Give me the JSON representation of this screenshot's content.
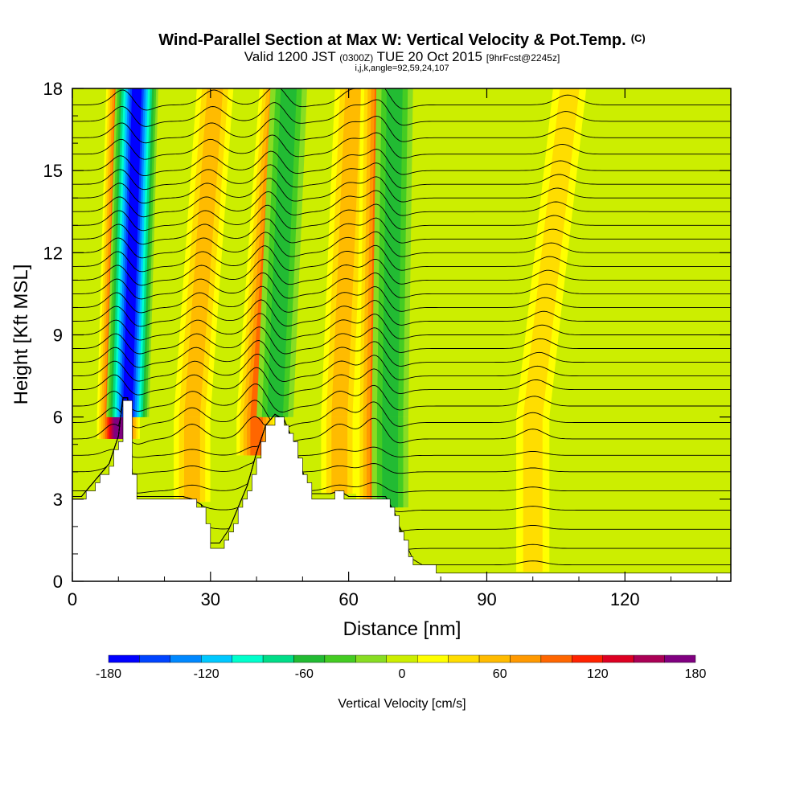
{
  "header": {
    "title": "Wind-Parallel Section at Max W: Vertical Velocity & Pot.Temp.",
    "title_mark": "(C)",
    "valid_prefix": "Valid 1200 JST",
    "valid_utc": "(0300Z)",
    "valid_date": "TUE 20 Oct 2015",
    "forecast": "[9hrFcst@2245z]",
    "indices": "i,j,k,angle=92,59,24,107"
  },
  "chart_data": {
    "type": "heatmap",
    "title": "Wind-Parallel Section at Max W: Vertical Velocity & Pot.Temp.",
    "xlabel": "Distance [nm]",
    "ylabel": "Height [Kft MSL]",
    "xlim": [
      0,
      143
    ],
    "ylim": [
      0,
      18
    ],
    "x_ticks": [
      "0",
      "30",
      "60",
      "90",
      "120"
    ],
    "y_ticks": [
      "0",
      "3",
      "6",
      "9",
      "12",
      "15",
      "18"
    ],
    "colorbar": {
      "label": "Vertical Velocity [cm/s]",
      "min": -180,
      "max": 180,
      "step": 20,
      "tick_labels": [
        "-180",
        "-120",
        "-60",
        "0",
        "60",
        "120",
        "180"
      ],
      "colors": [
        "#0000ff",
        "#0044ff",
        "#0088ff",
        "#00c8ff",
        "#00ffcc",
        "#00dd88",
        "#22bb33",
        "#44cc22",
        "#88dd22",
        "#ccee00",
        "#ffff00",
        "#ffdd00",
        "#ffbb00",
        "#ff9900",
        "#ff6600",
        "#ff2200",
        "#dd0022",
        "#aa0055",
        "#800080"
      ]
    },
    "terrain_kft": {
      "x": [
        0,
        2,
        4,
        6,
        8,
        10,
        11,
        12,
        13,
        14,
        16,
        18,
        20,
        22,
        24,
        26,
        28,
        30,
        32,
        34,
        36,
        38,
        40,
        42,
        44,
        46,
        48,
        50,
        52,
        54,
        56,
        58,
        60,
        62,
        64,
        66,
        68,
        70,
        72,
        74,
        76,
        78,
        80,
        90,
        100,
        110,
        120,
        130,
        143
      ],
      "h": [
        3.0,
        3.0,
        3.4,
        3.8,
        4.2,
        5.2,
        6.6,
        6.6,
        3.8,
        3.0,
        3.0,
        3.0,
        3.0,
        3.0,
        3.0,
        2.9,
        2.7,
        1.3,
        1.3,
        1.8,
        2.6,
        3.4,
        4.6,
        5.6,
        6.0,
        5.8,
        5.0,
        3.9,
        3.1,
        3.1,
        3.1,
        3.2,
        3.0,
        3.0,
        3.0,
        3.0,
        3.0,
        2.4,
        1.4,
        0.7,
        0.5,
        0.5,
        0.35,
        0.35,
        0.35,
        0.35,
        0.35,
        0.35,
        0.35
      ]
    },
    "vertical_velocity_bands": [
      {
        "x_kft6": 10,
        "x_top": 12,
        "w": 180,
        "sign": "up"
      },
      {
        "x_kft6": 12,
        "x_top": 14,
        "w": -180,
        "sign": "down"
      },
      {
        "x_kft6": 26,
        "x_top": 31,
        "w": 60,
        "sign": "up"
      },
      {
        "x_kft6": 40,
        "x_top": 45,
        "w": 100,
        "sign": "up"
      },
      {
        "x_kft6": 44,
        "x_top": 47,
        "w": -60,
        "sign": "down"
      },
      {
        "x_kft6": 58,
        "x_top": 61,
        "w": 60,
        "sign": "up"
      },
      {
        "x_kft6": 66,
        "x_top": 67,
        "w": 100,
        "sign": "up"
      },
      {
        "x_kft6": 69,
        "x_top": 70,
        "w": -60,
        "sign": "down"
      },
      {
        "x_kft6": 100,
        "x_top": 108,
        "w": 40,
        "sign": "up"
      }
    ],
    "theta_isentropes_kft": [
      0.6,
      1.2,
      1.9,
      2.6,
      3.3,
      4.0,
      4.6,
      5.2,
      5.8,
      6.4,
      7.0,
      7.5,
      8.0,
      8.5,
      9.0,
      9.5,
      10.0,
      10.5,
      11.0,
      11.5,
      12.0,
      12.5,
      13.0,
      13.5,
      14.0,
      14.5,
      15.0,
      15.6,
      16.2,
      16.8,
      17.4
    ]
  }
}
